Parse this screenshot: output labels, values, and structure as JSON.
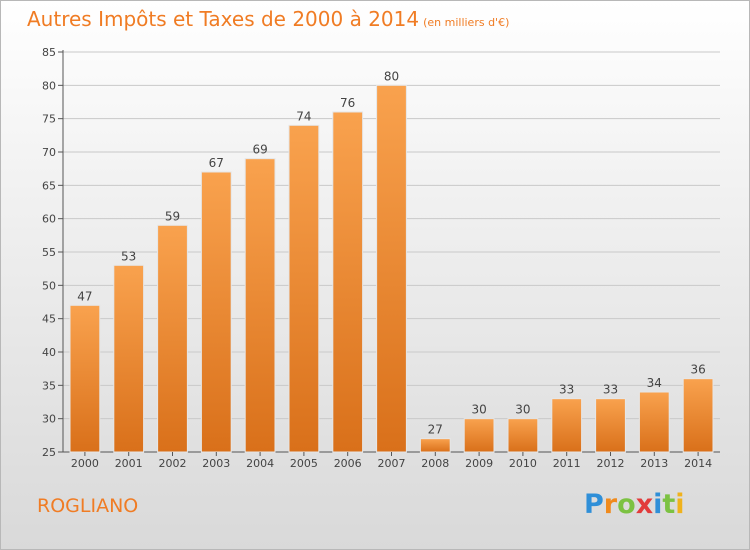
{
  "title": "Autres Impôts et Taxes de 2000 à 2014",
  "subtitle": "(en milliers d'€)",
  "place": "ROGLIANO",
  "logo": {
    "letters": [
      "P",
      "r",
      "o",
      "x",
      "i",
      "t",
      "i"
    ],
    "colors": [
      "#2f8fd8",
      "#f08a1c",
      "#7cc242",
      "#e23b3b",
      "#2f8fd8",
      "#7cc242",
      "#f0b21c"
    ]
  },
  "colors": {
    "bar_top": "#f9a24e",
    "bar_bottom": "#d9701a",
    "axis": "#555555",
    "grid": "#c9c9c9",
    "accent": "#f07c24"
  },
  "chart_data": {
    "type": "bar",
    "title": "Autres Impôts et Taxes de 2000 à 2014",
    "subtitle": "(en milliers d'€)",
    "categories": [
      "2000",
      "2001",
      "2002",
      "2003",
      "2004",
      "2005",
      "2006",
      "2007",
      "2008",
      "2009",
      "2010",
      "2011",
      "2012",
      "2013",
      "2014"
    ],
    "values": [
      47,
      53,
      59,
      67,
      69,
      74,
      76,
      80,
      27,
      30,
      30,
      33,
      33,
      34,
      36
    ],
    "ylim": [
      25,
      85
    ],
    "yticks": [
      25,
      30,
      35,
      40,
      45,
      50,
      55,
      60,
      65,
      70,
      75,
      80,
      85
    ],
    "grid": true,
    "xlabel": "",
    "ylabel": ""
  }
}
